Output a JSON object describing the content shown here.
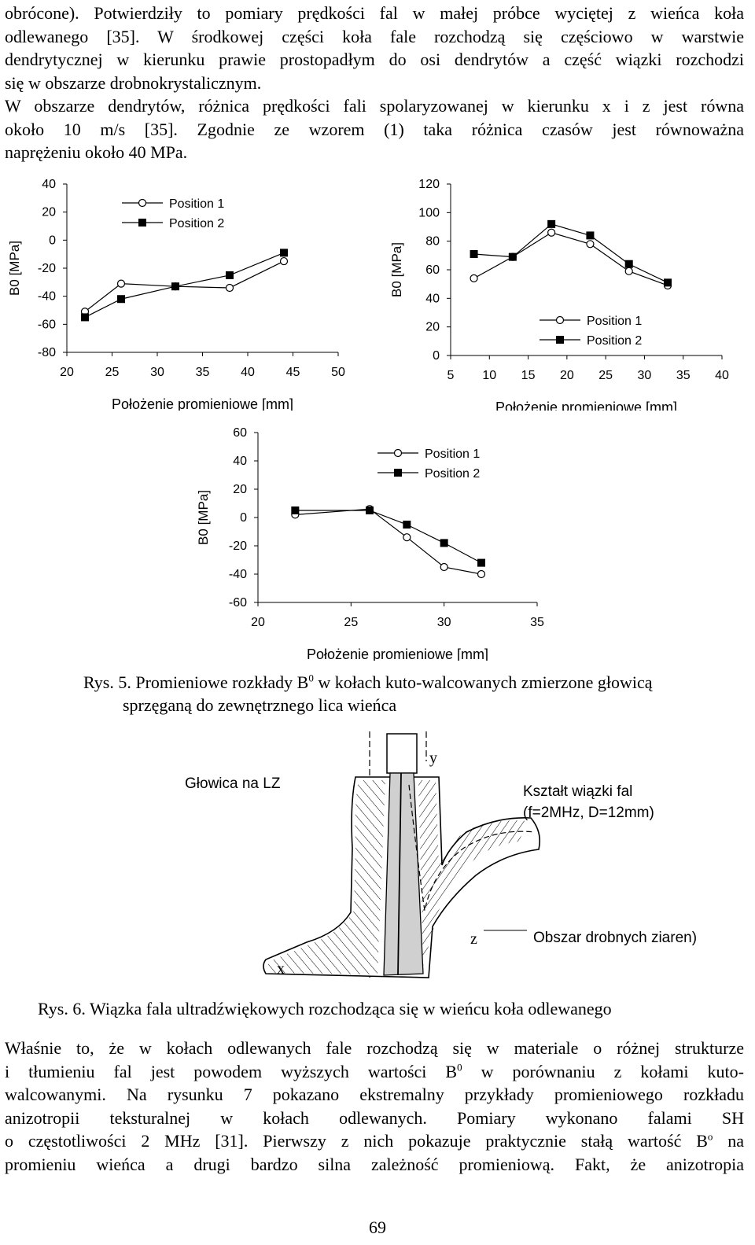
{
  "top_paragraph": {
    "lines": [
      "obrócone). Potwierdziły to pomiary prędkości fal w małej próbce wyciętej z wieńca koła",
      "odlewanego [35]. W środkowej części koła fale rozchodzą się częściowo w warstwie",
      "dendrytycznej w kierunku prawie prostopadłym do osi dendrytów a część wiązki rozchodzi",
      "się w obszarze drobnokrystalicznym.",
      "W obszarze dendrytów, różnica prędkości fali spolaryzowanej w kierunku x i z jest równa",
      "około 10 m/s [35]. Zgodnie ze wzorem (1) taka różnica czasów jest równoważna",
      "naprężeniu około 40 MPa."
    ]
  },
  "chart_data": [
    {
      "type": "line",
      "xlabel": "Położenie promieniowe [mm]",
      "ylabel": "B0 [MPa]",
      "xlim": [
        20,
        50
      ],
      "ylim": [
        -80,
        40
      ],
      "xticks": [
        "20",
        "25",
        "30",
        "35",
        "40",
        "45",
        "50"
      ],
      "yticks": [
        "40",
        "20",
        "0",
        "-20",
        "-40",
        "-60",
        "-80"
      ],
      "legend_position": "top-left",
      "series": [
        {
          "name": "Position 1",
          "marker": "circle-open",
          "x": [
            22,
            26,
            32,
            38,
            44
          ],
          "y": [
            -51,
            -31,
            -33,
            -34,
            -15
          ]
        },
        {
          "name": "Position 2",
          "marker": "square-filled",
          "x": [
            22,
            26,
            32,
            38,
            44
          ],
          "y": [
            -55,
            -42,
            -33,
            -25,
            -9
          ]
        }
      ]
    },
    {
      "type": "line",
      "xlabel": "Położenie promieniowe [mm]",
      "ylabel": "B0 [MPa]",
      "xlim": [
        5,
        40
      ],
      "ylim": [
        0,
        120
      ],
      "xticks": [
        "5",
        "10",
        "15",
        "20",
        "25",
        "30",
        "35",
        "40"
      ],
      "yticks": [
        "120",
        "100",
        "80",
        "60",
        "40",
        "20",
        "0"
      ],
      "legend_position": "bottom-right",
      "series": [
        {
          "name": "Position 1",
          "marker": "circle-open",
          "x": [
            8,
            13,
            18,
            23,
            28,
            33
          ],
          "y": [
            54,
            69,
            86,
            78,
            59,
            49
          ]
        },
        {
          "name": "Position 2",
          "marker": "square-filled",
          "x": [
            8,
            13,
            18,
            23,
            28,
            33
          ],
          "y": [
            71,
            69,
            92,
            84,
            64,
            51
          ]
        }
      ]
    },
    {
      "type": "line",
      "xlabel": "Położenie promieniowe [mm]",
      "ylabel": "B0 [MPa]",
      "xlim": [
        20,
        35
      ],
      "ylim": [
        -60,
        60
      ],
      "xticks": [
        "20",
        "25",
        "30",
        "35"
      ],
      "yticks": [
        "60",
        "40",
        "20",
        "0",
        "-20",
        "-40",
        "-60"
      ],
      "legend_position": "top-right",
      "series": [
        {
          "name": "Position 1",
          "marker": "circle-open",
          "x": [
            22,
            26,
            28,
            30,
            32
          ],
          "y": [
            2,
            6,
            -14,
            -35,
            -40
          ]
        },
        {
          "name": "Position 2",
          "marker": "square-filled",
          "x": [
            22,
            26,
            28,
            30,
            32
          ],
          "y": [
            5,
            5,
            -5,
            -18,
            -32
          ]
        }
      ]
    }
  ],
  "figure5": {
    "caption_prefix": "Rys. 5. Promieniowe rozkłady B",
    "caption_sup": "0",
    "caption_line1_rest": " w kołach kuto-walcowanych zmierzone głowicą",
    "caption_line2": "sprzęganą do zewnętrznego lica wieńca"
  },
  "figure6": {
    "label_head": "Głowica na LZ",
    "label_y": "y",
    "label_beam_1": "Kształt wiązki fal",
    "label_beam_2": "(f=2MHz, D=12mm)",
    "label_z": "z",
    "label_fine": "Obszar drobnych ziaren)",
    "label_x": "x",
    "caption": "Rys. 6. Wiązka fala ultradźwiękowych rozchodząca się w wieńcu koła odlewanego"
  },
  "bottom_paragraph": {
    "l1": "Właśnie to, że w kołach odlewanych fale rozchodzą się w materiale o różnej strukturze",
    "l2_a": "i tłumieniu fal jest powodem wyższych wartości B",
    "l2_sup": "0",
    "l2_b": " w porównaniu z kołami kuto-",
    "l3": "walcowanymi. Na rysunku 7 pokazano ekstremalny przykłady promieniowego rozkładu",
    "l4": "anizotropii teksturalnej w kołach odlewanych. Pomiary wykonano falami SH",
    "l5_a": "o częstotliwości 2 MHz [31]. Pierwszy z nich pokazuje praktycznie stałą wartość B",
    "l5_sup": "o",
    "l5_b": " na",
    "l6": "promieniu wieńca a drugi bardzo silna zależność promieniową. Fakt, że anizotropia"
  },
  "page_number": "69"
}
